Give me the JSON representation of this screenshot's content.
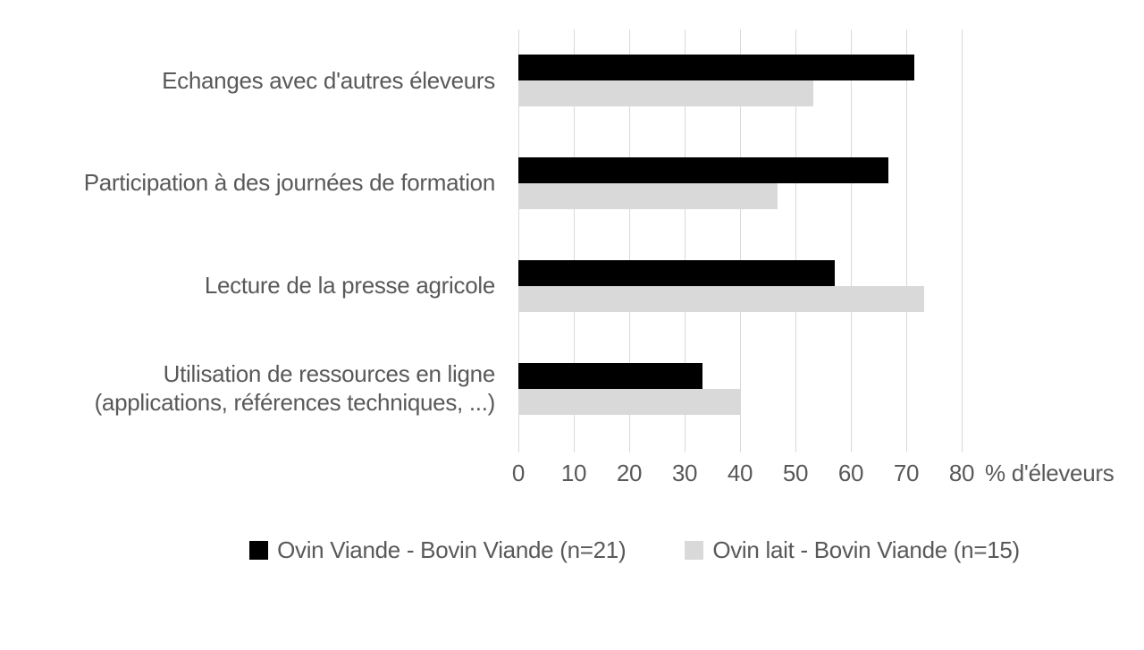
{
  "chart_data": {
    "type": "bar",
    "orientation": "horizontal",
    "title": "",
    "categories": [
      "Echanges avec d'autres éleveurs",
      "Participation à des journées de formation",
      "Lecture de la presse agricole",
      "Utilisation de ressources en ligne\n(applications, références techniques, ...)"
    ],
    "series": [
      {
        "name": "Ovin Viande - Bovin Viande (n=21)",
        "color": "#000000",
        "values": [
          71.4,
          66.7,
          57.1,
          33.3
        ]
      },
      {
        "name": "Ovin lait - Bovin Viande (n=15)",
        "color": "#d9d9d9",
        "values": [
          53.3,
          46.7,
          73.3,
          40.0
        ]
      }
    ],
    "xlabel": "% d'éleveurs",
    "xlim": [
      0,
      80
    ],
    "xticks": [
      0,
      10,
      20,
      30,
      40,
      50,
      60,
      70,
      80
    ],
    "grid": true,
    "gridline_color": "#d9d9d9",
    "text_color": "#595959",
    "legend_position": "bottom"
  }
}
